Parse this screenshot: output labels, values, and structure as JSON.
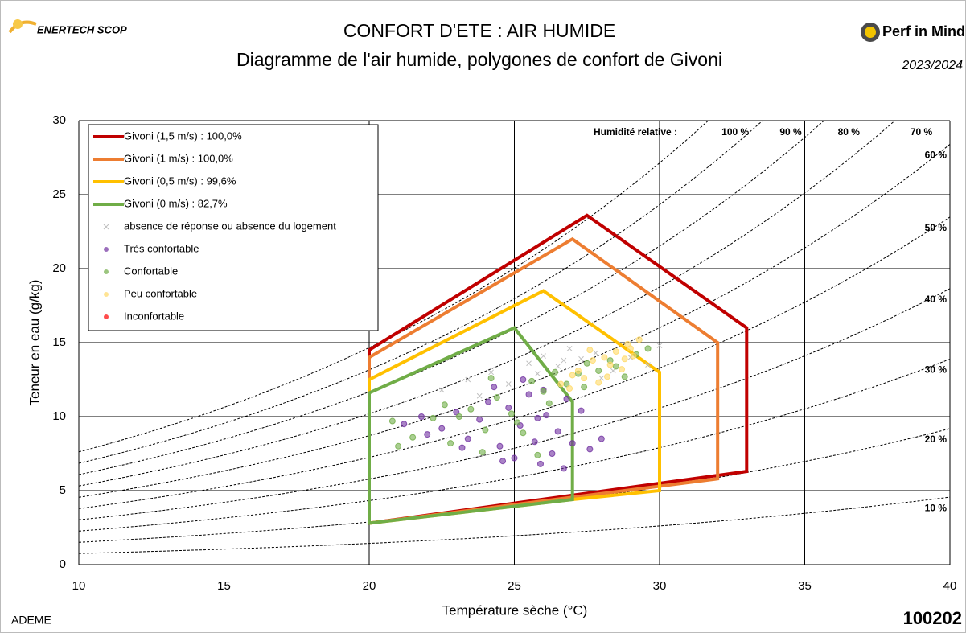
{
  "header": {
    "logo_left": "ENERTECH SCOP",
    "logo_right": "Perf in Mind",
    "period": "2023/2024"
  },
  "footer": {
    "source": "ADEME",
    "id": "100202"
  },
  "chart_data": {
    "type": "scatter",
    "title": "CONFORT D'ETE : AIR HUMIDE",
    "subtitle": "Diagramme de l'air humide, polygones de confort de Givoni",
    "x_label": "Température sèche (°C)",
    "y_label": "Teneur en eau (g/kg)",
    "xlim": [
      10,
      40
    ],
    "ylim": [
      0,
      30
    ],
    "xticks": [
      10,
      15,
      20,
      25,
      30,
      35,
      40
    ],
    "yticks": [
      0,
      5,
      10,
      15,
      20,
      25,
      30
    ],
    "grid": true,
    "rh_title": "Humidité relative :",
    "rh_curves": [
      {
        "value": 10,
        "label": "10 %"
      },
      {
        "value": 20,
        "label": "20 %"
      },
      {
        "value": 30,
        "label": "30 %"
      },
      {
        "value": 40,
        "label": "40 %"
      },
      {
        "value": 50,
        "label": "50 %"
      },
      {
        "value": 60,
        "label": "60 %"
      },
      {
        "value": 70,
        "label": "70 %"
      },
      {
        "value": 80,
        "label": "80 %"
      },
      {
        "value": 90,
        "label": "90 %"
      },
      {
        "value": 100,
        "label": "100 %"
      }
    ],
    "polygons": [
      {
        "name": "Givoni (1,5 m/s) : 100,0%",
        "color": "#c00000",
        "x": [
          20,
          20,
          27.5,
          33,
          33
        ],
        "y": [
          2.8,
          14.5,
          23.6,
          16,
          6.3
        ]
      },
      {
        "name": "Givoni (1 m/s) : 100,0%",
        "color": "#ed7d31",
        "x": [
          20,
          20,
          27,
          32,
          32
        ],
        "y": [
          2.8,
          14,
          22,
          15,
          5.8
        ]
      },
      {
        "name": "Givoni (0,5 m/s) : 99,6%",
        "color": "#ffc000",
        "x": [
          20,
          20,
          26,
          30,
          30,
          27
        ],
        "y": [
          2.8,
          12.5,
          18.5,
          13,
          5,
          4.4
        ]
      },
      {
        "name": "Givoni (0 m/s) : 82,7%",
        "color": "#70ad47",
        "x": [
          20,
          20,
          25,
          27,
          27
        ],
        "y": [
          2.8,
          11.6,
          16,
          11,
          4.4
        ]
      }
    ],
    "series": [
      {
        "name": "absence de réponse ou absence du logement",
        "color": "#bfbfbf",
        "marker": "x",
        "x": [
          22.5,
          23.4,
          24.2,
          24.8,
          25.5,
          26.0,
          26.5,
          26.9,
          27.3,
          27.8,
          28.4,
          29.0,
          29.6,
          30.0,
          25.8,
          26.7,
          28.0,
          23.8
        ],
        "y": [
          11.8,
          12.5,
          13.0,
          12.2,
          13.6,
          14.1,
          13.4,
          14.6,
          13.9,
          14.3,
          13.1,
          14.0,
          13.5,
          14.8,
          12.9,
          13.8,
          12.6,
          11.4
        ]
      },
      {
        "name": "Très confortable",
        "color": "#7030a0",
        "marker": "circle",
        "x": [
          21.2,
          21.8,
          22.5,
          23.0,
          23.4,
          23.8,
          24.1,
          24.5,
          24.8,
          25.0,
          25.2,
          25.5,
          25.7,
          25.9,
          26.1,
          26.3,
          26.5,
          26.7,
          27.0,
          27.3,
          27.6,
          28.0,
          22.0,
          23.2,
          24.3,
          25.3,
          26.0,
          26.8,
          24.6,
          25.8
        ],
        "y": [
          9.5,
          10.0,
          9.2,
          10.3,
          8.5,
          9.8,
          11.0,
          8.0,
          10.6,
          7.2,
          9.4,
          11.5,
          8.3,
          6.8,
          10.1,
          7.5,
          9.0,
          6.5,
          8.2,
          10.4,
          7.8,
          8.5,
          8.8,
          7.9,
          12.0,
          12.5,
          11.8,
          11.2,
          7.0,
          9.9
        ]
      },
      {
        "name": "Confortable",
        "color": "#70ad47",
        "marker": "circle",
        "x": [
          20.8,
          21.5,
          22.2,
          22.8,
          23.5,
          24.0,
          24.4,
          24.9,
          25.3,
          25.6,
          26.0,
          26.4,
          26.8,
          27.2,
          27.5,
          27.9,
          28.3,
          28.8,
          29.2,
          29.6,
          21.0,
          22.6,
          23.9,
          25.1,
          26.2,
          27.4,
          28.5,
          24.2,
          25.8,
          23.1
        ],
        "y": [
          9.7,
          8.6,
          9.9,
          8.2,
          10.5,
          9.1,
          11.3,
          10.2,
          8.9,
          12.4,
          11.7,
          13.0,
          12.2,
          12.9,
          13.6,
          13.1,
          13.8,
          12.7,
          14.2,
          14.6,
          8.0,
          10.8,
          7.6,
          9.6,
          10.9,
          12.0,
          13.4,
          12.6,
          7.4,
          10.0
        ]
      },
      {
        "name": "Peu confortable",
        "color": "#ffd966",
        "marker": "circle",
        "x": [
          26.6,
          26.9,
          27.2,
          27.4,
          27.7,
          27.9,
          28.1,
          28.3,
          28.5,
          28.7,
          28.9,
          29.1,
          29.3,
          27.0,
          27.6,
          28.2,
          28.8,
          29.0
        ],
        "y": [
          12.2,
          11.9,
          13.1,
          12.6,
          13.8,
          12.3,
          14.0,
          13.5,
          14.4,
          13.2,
          14.9,
          14.1,
          15.2,
          12.8,
          14.5,
          12.7,
          13.9,
          14.6
        ]
      },
      {
        "name": "Inconfortable",
        "color": "#ff0000",
        "marker": "circle",
        "x": [],
        "y": []
      }
    ]
  }
}
